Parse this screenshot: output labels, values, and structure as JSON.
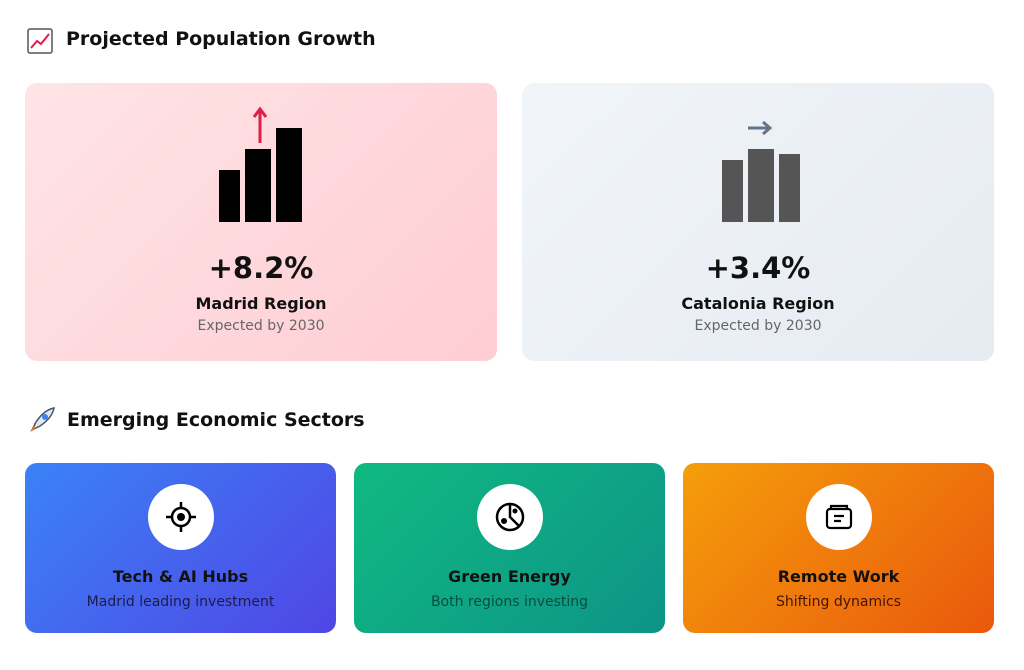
{
  "sections": [
    {
      "title": "Projected Population Growth",
      "cards": [
        {
          "value": "+8.2%",
          "name": "Madrid Region",
          "note": "Expected by 2030"
        },
        {
          "value": "+3.4%",
          "name": "Catalonia Region",
          "note": "Expected by 2030"
        }
      ]
    },
    {
      "title": "Emerging Economic Sectors",
      "cards": [
        {
          "name": "Tech & AI Hubs",
          "note": "Madrid leading investment"
        },
        {
          "name": "Green Energy",
          "note": "Both regions investing"
        },
        {
          "name": "Remote Work",
          "note": "Shifting dynamics"
        }
      ]
    }
  ]
}
